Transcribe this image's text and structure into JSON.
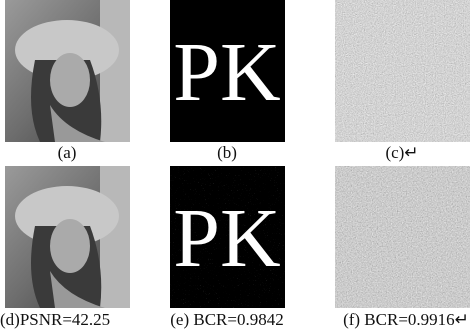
{
  "figure": {
    "panels": [
      {
        "caption": "(a)"
      },
      {
        "caption": "(b)",
        "text": "PK"
      },
      {
        "caption": "(c)↵"
      },
      {
        "caption": "(d)PSNR=42.25"
      },
      {
        "caption": "(e) BCR=0.9842",
        "text": "PK"
      },
      {
        "caption": "(f) BCR=0.9916↵"
      }
    ]
  }
}
